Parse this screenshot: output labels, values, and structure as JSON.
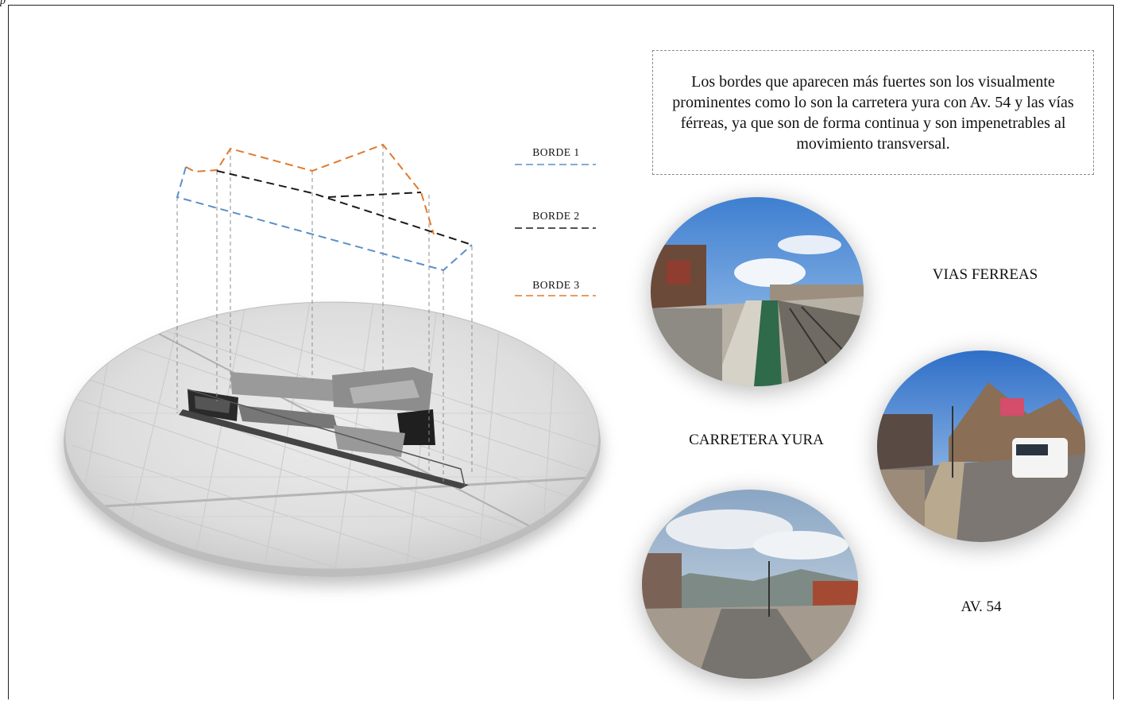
{
  "header": {
    "top_mark": "p"
  },
  "note": {
    "text": "Los bordes que aparecen más fuertes son los visualmente prominentes como lo son la carretera yura con Av. 54 y las vías férreas, ya que son de forma continua y son impenetrables al movimiento transversal."
  },
  "legend": {
    "items": [
      {
        "label": "BORDE 1",
        "color": "#5b8fc9"
      },
      {
        "label": "BORDE 2",
        "color": "#1a1a1a"
      },
      {
        "label": "BORDE 3",
        "color": "#e07a2e"
      }
    ]
  },
  "photos": {
    "vias_ferreas": {
      "label": "VIAS FERREAS"
    },
    "carretera_yura": {
      "label": "CARRETERA YURA"
    },
    "av54": {
      "label": "AV. 54"
    }
  },
  "colors": {
    "borde1": "#5b8fc9",
    "borde2": "#1a1a1a",
    "borde3": "#e07a2e",
    "frame": "#222222"
  }
}
